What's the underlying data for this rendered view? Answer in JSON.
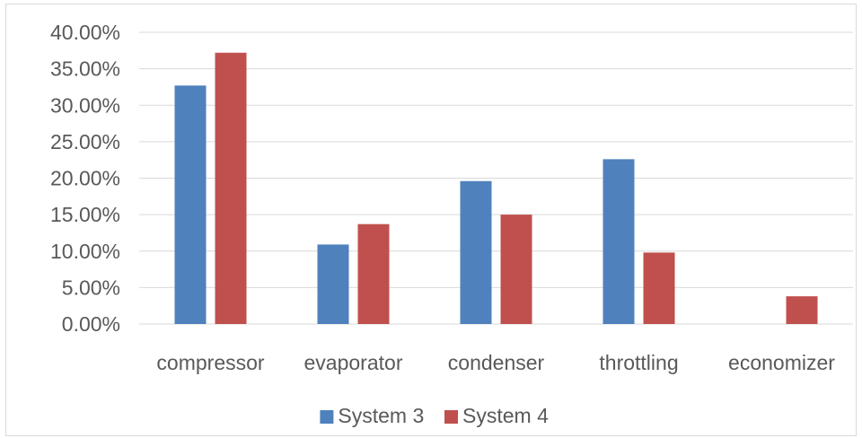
{
  "chart_data": {
    "type": "bar",
    "title": "",
    "xlabel": "",
    "ylabel": "",
    "categories": [
      "compressor",
      "evaporator",
      "condenser",
      "throttling",
      "economizer"
    ],
    "series": [
      {
        "name": "System 3",
        "color": "#4f81bd",
        "values": [
          0.327,
          0.109,
          0.196,
          0.226,
          0.0
        ]
      },
      {
        "name": "System 4",
        "color": "#c0504d",
        "values": [
          0.372,
          0.137,
          0.15,
          0.098,
          0.038
        ]
      }
    ],
    "ylim": [
      0,
      0.4
    ],
    "yticks": [
      "0.00%",
      "5.00%",
      "10.00%",
      "15.00%",
      "20.00%",
      "25.00%",
      "30.00%",
      "35.00%",
      "40.00%"
    ],
    "grid": true,
    "gridline_color": "#d9d9d9",
    "legend_position": "bottom"
  }
}
